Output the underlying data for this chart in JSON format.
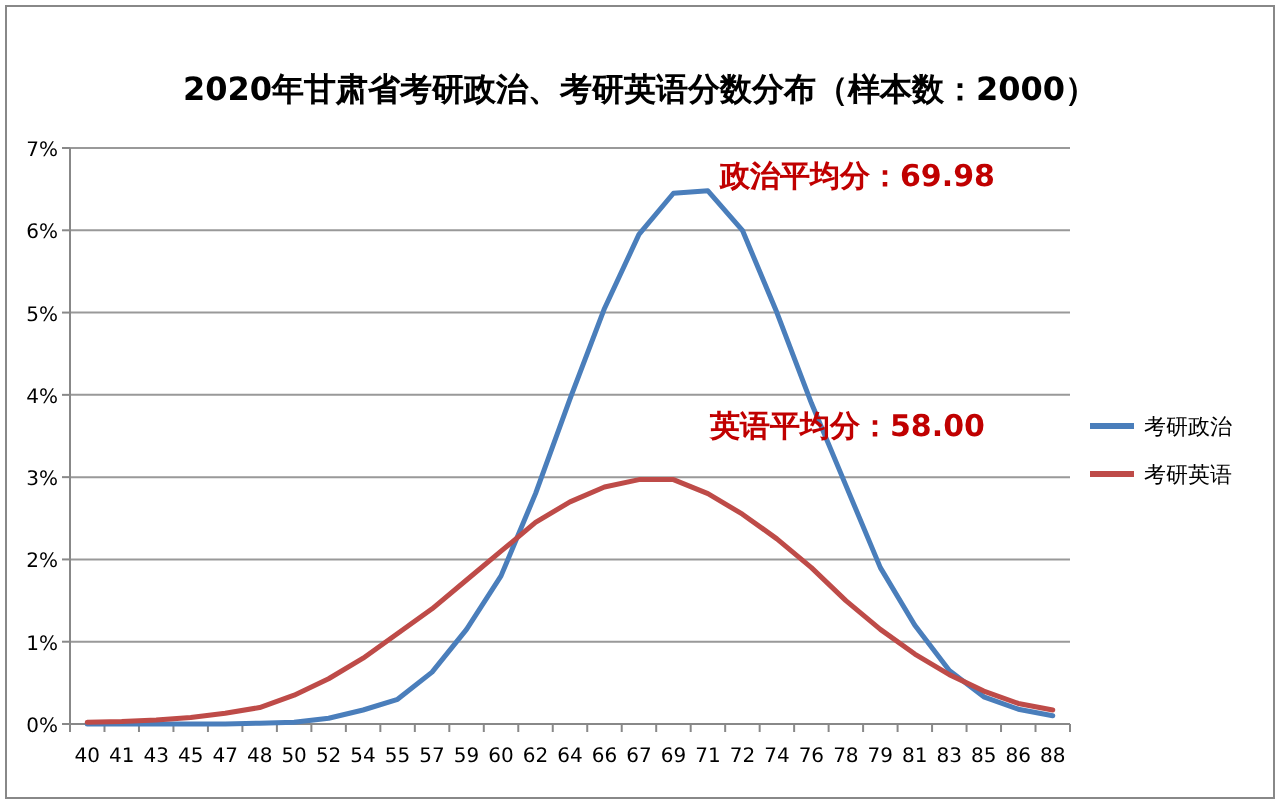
{
  "chart_data": {
    "type": "line",
    "title": "2020年甘肃省考研政治、考研英语分数分布（样本数：2000）",
    "categories": [
      "40",
      "41",
      "43",
      "45",
      "47",
      "48",
      "50",
      "52",
      "54",
      "55",
      "57",
      "59",
      "60",
      "62",
      "64",
      "66",
      "67",
      "69",
      "71",
      "72",
      "74",
      "76",
      "78",
      "79",
      "81",
      "83",
      "85",
      "86",
      "88"
    ],
    "series": [
      {
        "name": "考研政治",
        "color": "#4a7ebb",
        "values": [
          0,
          0,
          0,
          0,
          0,
          0.01,
          0.02,
          0.07,
          0.17,
          0.3,
          0.63,
          1.15,
          1.8,
          2.8,
          3.95,
          5.05,
          5.95,
          6.45,
          6.48,
          6.0,
          5.0,
          3.9,
          2.9,
          1.9,
          1.2,
          0.65,
          0.33,
          0.18,
          0.1
        ]
      },
      {
        "name": "考研英语",
        "color": "#be4b48",
        "values": [
          0.02,
          0.03,
          0.05,
          0.08,
          0.13,
          0.2,
          0.35,
          0.55,
          0.8,
          1.1,
          1.4,
          1.75,
          2.1,
          2.45,
          2.7,
          2.88,
          2.97,
          2.97,
          2.8,
          2.55,
          2.25,
          1.9,
          1.5,
          1.15,
          0.85,
          0.6,
          0.4,
          0.25,
          0.17
        ]
      }
    ],
    "ylim": [
      0,
      7
    ],
    "yticks": [
      {
        "value": 0,
        "label": "0%"
      },
      {
        "value": 1,
        "label": "1%"
      },
      {
        "value": 2,
        "label": "2%"
      },
      {
        "value": 3,
        "label": "3%"
      },
      {
        "value": 4,
        "label": "4%"
      },
      {
        "value": 5,
        "label": "5%"
      },
      {
        "value": 6,
        "label": "6%"
      },
      {
        "value": 7,
        "label": "7%"
      }
    ],
    "grid": "y",
    "legend": "right",
    "annotations": [
      "政治平均分：69.98",
      "英语平均分：58.00"
    ]
  }
}
